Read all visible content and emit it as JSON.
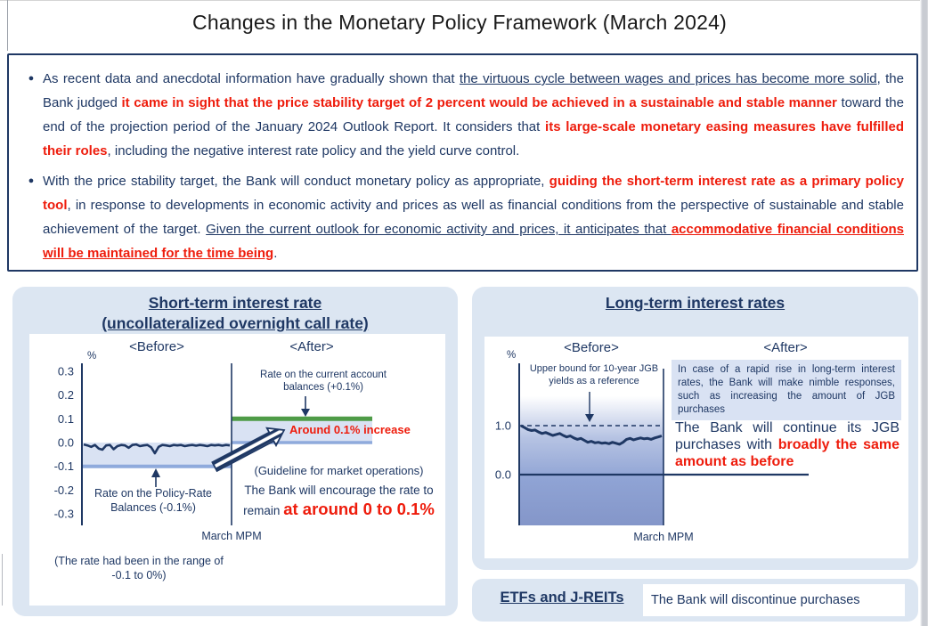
{
  "title": "Changes in the Monetary Policy Framework (March 2024)",
  "colors": {
    "navy": "#1F3864",
    "red": "#EE1C0C",
    "panel_blue": "#DCE6F2",
    "band_blue": "#D9E2F3",
    "line_blue": "#8FAADC",
    "green": "#4E9B47"
  },
  "summary_box": {
    "bullet_char": "●",
    "bullets": [
      {
        "segments": [
          {
            "t": "As recent data and anecdotal information have gradually shown that ",
            "s": "n"
          },
          {
            "t": "the virtuous cycle between wages and prices has become more solid",
            "s": "u"
          },
          {
            "t": ", the Bank judged ",
            "s": "n"
          },
          {
            "t": "it came in sight that the price stability target of 2 percent would be achieved in a sustainable and stable manner",
            "s": "r"
          },
          {
            "t": " toward the end of the projection period of the January 2024 Outlook Report. It considers that ",
            "s": "n"
          },
          {
            "t": "its large-scale monetary easing measures have fulfilled their roles",
            "s": "r"
          },
          {
            "t": ", including the negative interest rate policy and the yield curve control.",
            "s": "n"
          }
        ]
      },
      {
        "segments": [
          {
            "t": "With the price stability target, the Bank will conduct monetary policy as appropriate, ",
            "s": "n"
          },
          {
            "t": "guiding the short-term interest rate as a primary policy tool",
            "s": "r"
          },
          {
            "t": ", in response to developments in economic activity and prices as well as financial conditions from the perspective of sustainable and stable achievement of the target. ",
            "s": "n"
          },
          {
            "t": "Given the current outlook for economic activity and prices, it anticipates that ",
            "s": "u"
          },
          {
            "t": "accommodative financial conditions will be maintained for the time being",
            "s": "ru"
          },
          {
            "t": ".",
            "s": "n"
          }
        ]
      }
    ]
  },
  "chart_data": [
    {
      "type": "line",
      "panel_title_lines": [
        "Short-term interest rate",
        "(uncollateralized overnight call rate)"
      ],
      "ylabel": "%",
      "yticks": [
        0.3,
        0.2,
        0.1,
        0.0,
        -0.1,
        -0.2,
        -0.3
      ],
      "ylim": [
        -0.3,
        0.3
      ],
      "divider_label": "March MPM",
      "before": {
        "label": "<Before>",
        "series_name": "uncollateralized overnight call rate",
        "values": [
          -0.008,
          -0.012,
          -0.018,
          -0.01,
          -0.025,
          -0.03,
          -0.012,
          -0.01,
          -0.028,
          -0.015,
          -0.01,
          -0.012,
          -0.022,
          -0.01,
          -0.008,
          -0.015,
          -0.012,
          -0.01,
          -0.02,
          -0.045,
          -0.018,
          -0.01,
          -0.012,
          -0.015,
          -0.01,
          -0.012,
          -0.01,
          -0.015,
          -0.012,
          -0.01,
          -0.013,
          -0.01,
          -0.012,
          -0.015,
          -0.01,
          -0.012,
          -0.01,
          -0.013,
          -0.01,
          -0.012
        ],
        "band": [
          -0.1,
          0
        ],
        "policy_rate_line": -0.1,
        "annotation": "Rate on the Policy-Rate Balances (-0.1%)"
      },
      "after": {
        "label": "<After>",
        "band": [
          0,
          0.1
        ],
        "current_account_line": 0.1,
        "annotation": "Rate on the current account balances (+0.1%)",
        "increase_label": "Around 0.1% increase",
        "guideline_heading": "(Guideline for market operations)",
        "guideline_segments": [
          {
            "t": "The Bank will encourage the rate to remain ",
            "s": "n"
          },
          {
            "t": "at around 0 to 0.1%",
            "s": "rl"
          }
        ]
      },
      "footnote": "(The rate had been in the range of -0.1 to 0%)"
    },
    {
      "type": "line",
      "panel_title_lines": [
        "Long-term interest rates"
      ],
      "ylabel": "%",
      "yticks": [
        1.0,
        0.0
      ],
      "ylim": [
        -1.0,
        1.3
      ],
      "divider_label": "March MPM",
      "before": {
        "label": "<Before>",
        "series_name": "10-year JGB yields",
        "values": [
          1.0,
          0.96,
          0.92,
          0.9,
          0.91,
          0.87,
          0.84,
          0.86,
          0.83,
          0.8,
          0.82,
          0.84,
          0.8,
          0.77,
          0.79,
          0.75,
          0.72,
          0.74,
          0.7,
          0.66,
          0.68,
          0.65,
          0.66,
          0.64,
          0.65,
          0.63,
          0.66,
          0.64,
          0.62,
          0.66,
          0.72,
          0.74,
          0.71,
          0.73,
          0.75,
          0.73,
          0.74,
          0.72,
          0.75,
          0.77,
          0.79
        ],
        "upper_bound_line": 1.0,
        "annotation": "Upper bound for 10-year JGB yields as a reference"
      },
      "after": {
        "label": "<After>",
        "callout": "In case of a rapid rise in long-term interest rates, the Bank will make nimble responses, such as increasing the amount of JGB purchases",
        "main_segments": [
          {
            "t": "The Bank will continue its JGB purchases with ",
            "s": "n"
          },
          {
            "t": "broadly the same amount as before",
            "s": "r"
          }
        ]
      }
    }
  ],
  "etf_section": {
    "label": "ETFs and J-REITs",
    "text": "The Bank will discontinue purchases"
  }
}
